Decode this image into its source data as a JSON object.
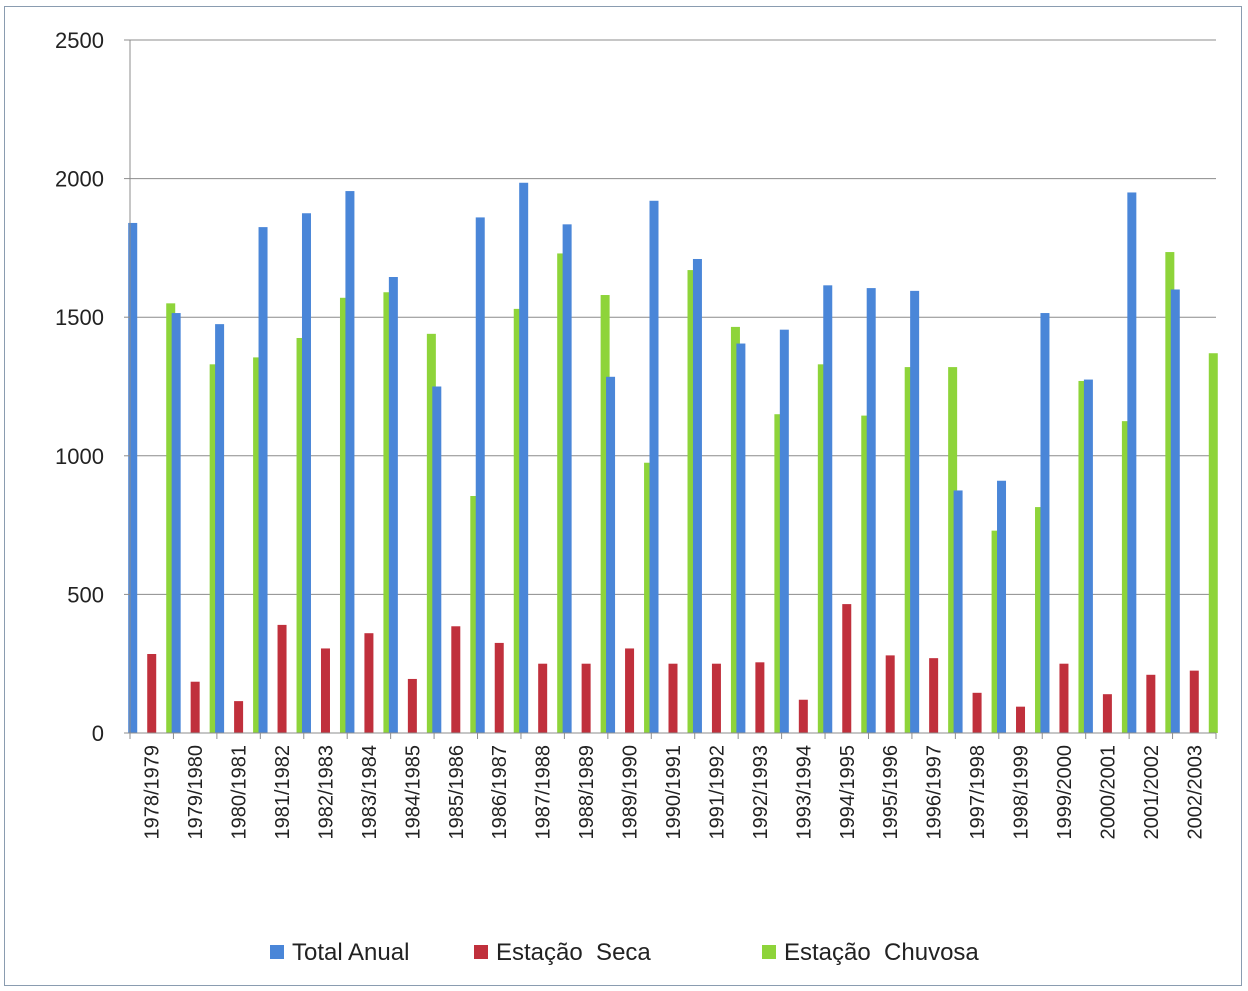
{
  "chart_data": {
    "type": "bar",
    "title": "",
    "xlabel": "",
    "ylabel": "",
    "ylim": [
      0,
      2500
    ],
    "yticks": [
      0,
      500,
      1000,
      1500,
      2000,
      2500
    ],
    "grid": true,
    "legend_position": "bottom",
    "categories": [
      "1978/1979",
      "1979/1980",
      "1980/1981",
      "1981/1982",
      "1982/1983",
      "1983/1984",
      "1984/1985",
      "1985/1986",
      "1986/1987",
      "1987/1988",
      "1988/1989",
      "1989/1990",
      "1990/1991",
      "1991/1992",
      "1992/1993",
      "1993/1994",
      "1994/1995",
      "1995/1996",
      "1996/1997",
      "1997/1998",
      "1998/1999",
      "1999/2000",
      "2000/2001",
      "2001/2002",
      "2002/2003"
    ],
    "series": [
      {
        "name": "Total Anual",
        "color": "#4a86d8",
        "values": [
          1840,
          1515,
          1475,
          1825,
          1875,
          1955,
          1645,
          1250,
          1860,
          1985,
          1835,
          1285,
          1920,
          1710,
          1405,
          1455,
          1615,
          1605,
          1595,
          875,
          910,
          1515,
          1275,
          1950,
          1600
        ]
      },
      {
        "name": "Estação  Seca",
        "color": "#c0303c",
        "values": [
          285,
          185,
          115,
          390,
          305,
          360,
          195,
          385,
          325,
          250,
          250,
          305,
          250,
          250,
          255,
          120,
          465,
          280,
          270,
          145,
          95,
          250,
          140,
          210,
          225
        ]
      },
      {
        "name": "Estação  Chuvosa",
        "color": "#8ed43a",
        "values": [
          1550,
          1330,
          1355,
          1425,
          1570,
          1590,
          1440,
          855,
          1530,
          1730,
          1580,
          975,
          1670,
          1465,
          1150,
          1330,
          1145,
          1320,
          1320,
          730,
          815,
          1270,
          1125,
          1735,
          1370
        ]
      }
    ]
  }
}
